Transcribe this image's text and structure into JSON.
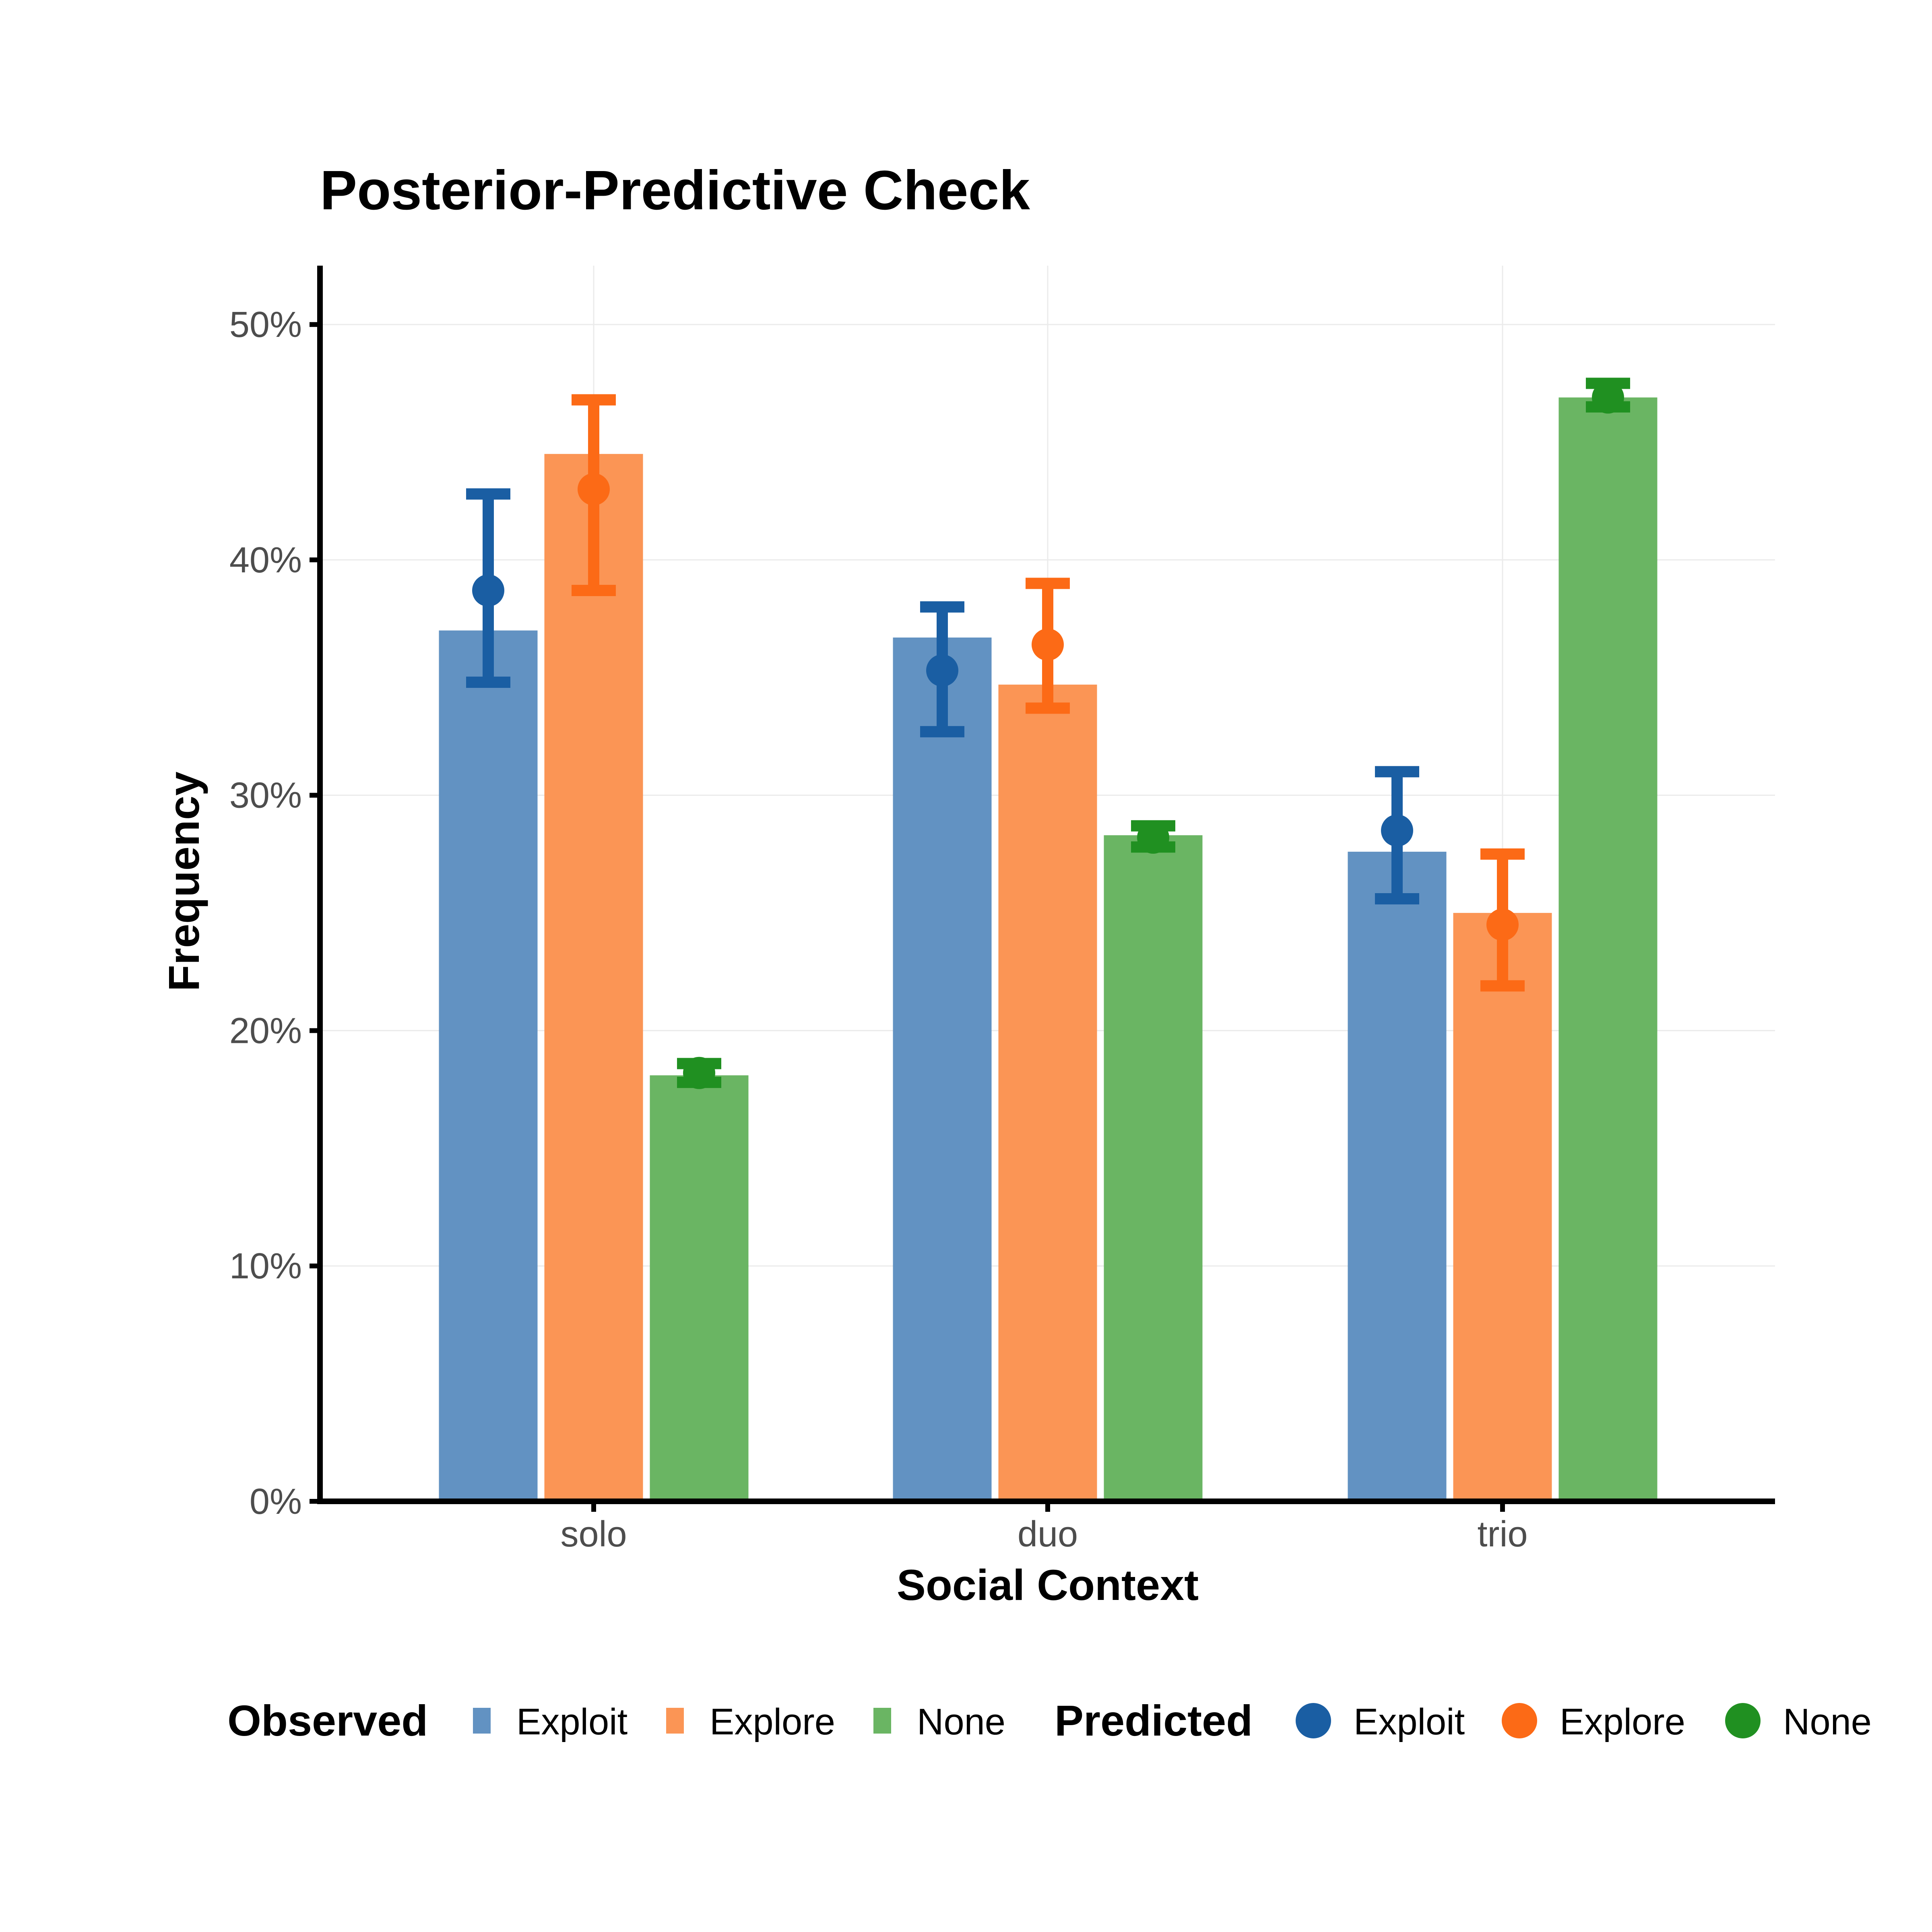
{
  "chart_data": {
    "type": "bar",
    "title": "Posterior-Predictive Check",
    "xlabel": "Social Context",
    "ylabel": "Frequency",
    "categories": [
      "solo",
      "duo",
      "trio"
    ],
    "ylim": [
      0,
      0.525
    ],
    "yticks": [
      0,
      0.1,
      0.2,
      0.3,
      0.4,
      0.5
    ],
    "ytick_labels": [
      "0%",
      "10%",
      "20%",
      "30%",
      "40%",
      "50%"
    ],
    "grid": true,
    "legend_position": "bottom",
    "observed": {
      "legend_title": "Observed",
      "series": [
        {
          "name": "Exploit",
          "color": "#6292c2",
          "values": [
            0.37,
            0.367,
            0.276
          ]
        },
        {
          "name": "Explore",
          "color": "#fb9555",
          "values": [
            0.445,
            0.347,
            0.25
          ]
        },
        {
          "name": "None",
          "color": "#6ab563",
          "values": [
            0.181,
            0.283,
            0.469
          ]
        }
      ]
    },
    "predicted": {
      "legend_title": "Predicted",
      "series": [
        {
          "name": "Exploit",
          "color": "#1a5ea3",
          "mean": [
            0.387,
            0.353,
            0.285
          ],
          "lower": [
            0.348,
            0.327,
            0.256
          ],
          "upper": [
            0.428,
            0.38,
            0.31
          ]
        },
        {
          "name": "Explore",
          "color": "#fc6a16",
          "mean": [
            0.43,
            0.364,
            0.245
          ],
          "lower": [
            0.387,
            0.337,
            0.219
          ],
          "upper": [
            0.468,
            0.39,
            0.275
          ]
        },
        {
          "name": "None",
          "color": "#209021",
          "mean": [
            0.182,
            0.282,
            0.469
          ],
          "lower": [
            0.178,
            0.278,
            0.465
          ],
          "upper": [
            0.186,
            0.287,
            0.475
          ]
        }
      ]
    }
  }
}
